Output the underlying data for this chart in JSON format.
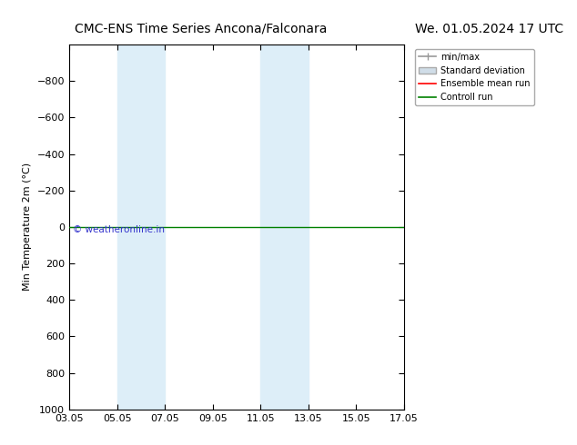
{
  "title_left": "CMC-ENS Time Series Ancona/Falconara",
  "title_right": "We. 01.05.2024 17 UTC",
  "ylabel": "Min Temperature 2m (°C)",
  "background_color": "#ffffff",
  "plot_bg_color": "#ffffff",
  "ylim": [
    -1000,
    1000
  ],
  "yticks": [
    -800,
    -600,
    -400,
    -200,
    0,
    200,
    400,
    600,
    800,
    1000
  ],
  "xtick_labels": [
    "03.05",
    "05.05",
    "07.05",
    "09.05",
    "11.05",
    "13.05",
    "15.05",
    "17.05"
  ],
  "xtick_positions": [
    0,
    2,
    4,
    6,
    8,
    10,
    12,
    14
  ],
  "shaded_bands": [
    {
      "x_start": 2,
      "x_end": 3
    },
    {
      "x_start": 3,
      "x_end": 4
    },
    {
      "x_start": 8,
      "x_end": 9
    },
    {
      "x_start": 9,
      "x_end": 10
    }
  ],
  "shaded_color": "#ddeef8",
  "control_run_y": 0,
  "control_run_color": "#008000",
  "ensemble_mean_color": "#ff0000",
  "minmax_color": "#999999",
  "stddev_color": "#d0dde8",
  "watermark_text": "© weatheronline.in",
  "watermark_color": "#3333cc",
  "legend_labels": [
    "min/max",
    "Standard deviation",
    "Ensemble mean run",
    "Controll run"
  ],
  "legend_colors": [
    "#999999",
    "#d0dde8",
    "#ff0000",
    "#008000"
  ],
  "title_fontsize": 10,
  "axis_label_fontsize": 8,
  "tick_fontsize": 8,
  "legend_fontsize": 7
}
